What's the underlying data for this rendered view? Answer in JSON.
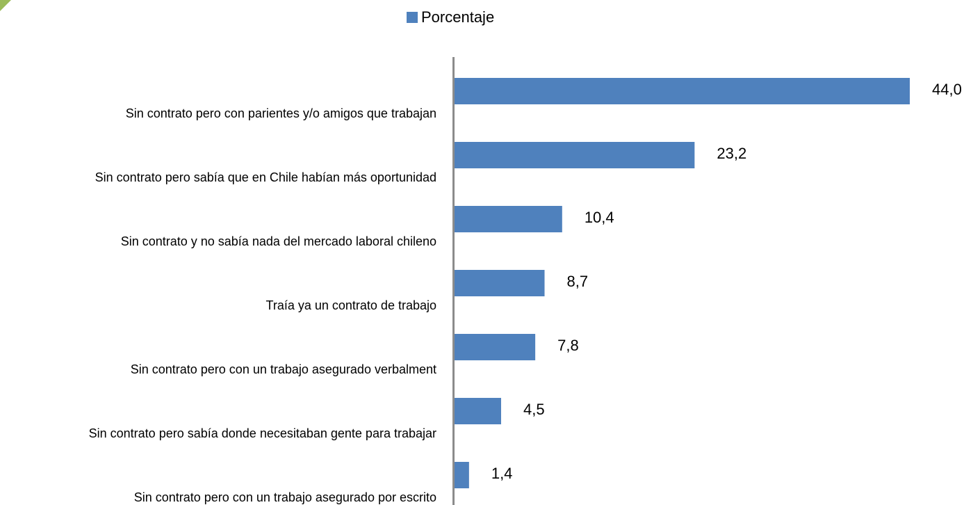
{
  "chart_data": {
    "type": "bar",
    "orientation": "horizontal",
    "legend": "top",
    "series": [
      {
        "name": "Porcentaje",
        "color": "#4f81bd",
        "values": [
          44.0,
          23.2,
          10.4,
          8.7,
          7.8,
          4.5,
          1.4
        ],
        "value_labels": [
          "44,0",
          "23,2",
          "10,4",
          "8,7",
          "7,8",
          "4,5",
          "1,4"
        ]
      }
    ],
    "categories": [
      "Sin contrato pero con parientes y/o amigos que trabajan",
      "Sin contrato pero sabía que en Chile habían más oportunidad",
      "Sin contrato y no sabía nada del mercado laboral chileno",
      "Traía ya un contrato de trabajo",
      "Sin contrato pero con un trabajo asegurado verbalment",
      "Sin contrato pero sabía donde necesitaban gente para trabajar",
      "Sin contrato pero con un trabajo asegurado por escrito"
    ]
  }
}
